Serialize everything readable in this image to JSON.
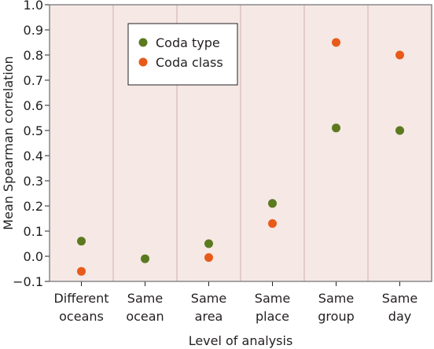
{
  "chart_data": {
    "type": "scatter",
    "title": "",
    "xlabel": "Level of analysis",
    "ylabel": "Mean Spearman correlation",
    "ylim": [
      -0.1,
      1.0
    ],
    "yticks": [
      "−0.1",
      "0.0",
      "0.1",
      "0.2",
      "0.3",
      "0.4",
      "0.5",
      "0.6",
      "0.7",
      "0.8",
      "0.9",
      "1.0"
    ],
    "categories": [
      [
        "Different",
        "oceans"
      ],
      [
        "Same",
        "ocean"
      ],
      [
        "Same",
        "area"
      ],
      [
        "Same",
        "place"
      ],
      [
        "Same",
        "group"
      ],
      [
        "Same",
        "day"
      ]
    ],
    "series": [
      {
        "name": "Coda type",
        "color": "#5b7a1f",
        "values": [
          0.06,
          -0.01,
          0.05,
          0.21,
          0.51,
          0.5
        ]
      },
      {
        "name": "Coda class",
        "color": "#e85a1a",
        "values": [
          -0.06,
          null,
          -0.005,
          0.13,
          0.85,
          0.8
        ]
      }
    ],
    "legend_position": "top-left",
    "grid": {
      "vertical": true,
      "horizontal": false
    },
    "colors": {
      "plot_background": "#f5e8e5",
      "grid": "#d9b8b8",
      "frame": "#6d6e71"
    }
  }
}
